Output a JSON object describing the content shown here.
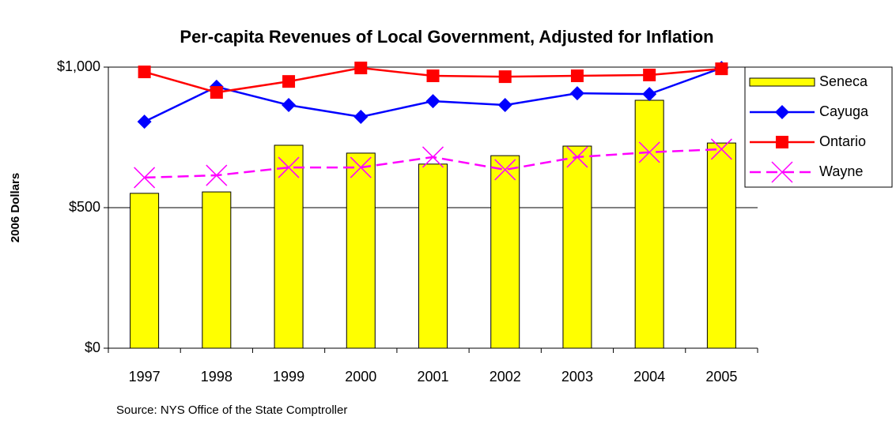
{
  "chart_data": {
    "type": "bar",
    "title": "Per-capita Revenues of Local Government, Adjusted for Inflation",
    "y_label": "2006 Dollars",
    "source": "Source: NYS Office of the State Comptroller",
    "categories": [
      "1997",
      "1998",
      "1999",
      "2000",
      "2001",
      "2002",
      "2003",
      "2004",
      "2005"
    ],
    "series": [
      {
        "name": "Seneca",
        "type": "bar",
        "color": "#ffff00",
        "values": [
          551,
          556,
          722,
          694,
          655,
          685,
          719,
          882,
          730
        ]
      },
      {
        "name": "Cayuga",
        "type": "line",
        "marker": "diamond",
        "color": "#0000ff",
        "values": [
          806,
          930,
          865,
          823,
          879,
          865,
          907,
          904,
          997
        ]
      },
      {
        "name": "Ontario",
        "type": "line",
        "marker": "square",
        "color": "#ff0000",
        "values": [
          983,
          910,
          949,
          997,
          969,
          966,
          969,
          972,
          994
        ]
      },
      {
        "name": "Wayne",
        "type": "line",
        "marker": "x",
        "dashed": true,
        "color": "#ff00ff",
        "values": [
          607,
          615,
          643,
          643,
          680,
          635,
          680,
          697,
          708
        ]
      }
    ],
    "ylim": [
      0,
      1000
    ],
    "yticks": [
      {
        "value": 0,
        "label": "$0"
      },
      {
        "value": 500,
        "label": "$500"
      },
      {
        "value": 1000,
        "label": "$1,000"
      }
    ],
    "grid": true,
    "legend": "right"
  }
}
